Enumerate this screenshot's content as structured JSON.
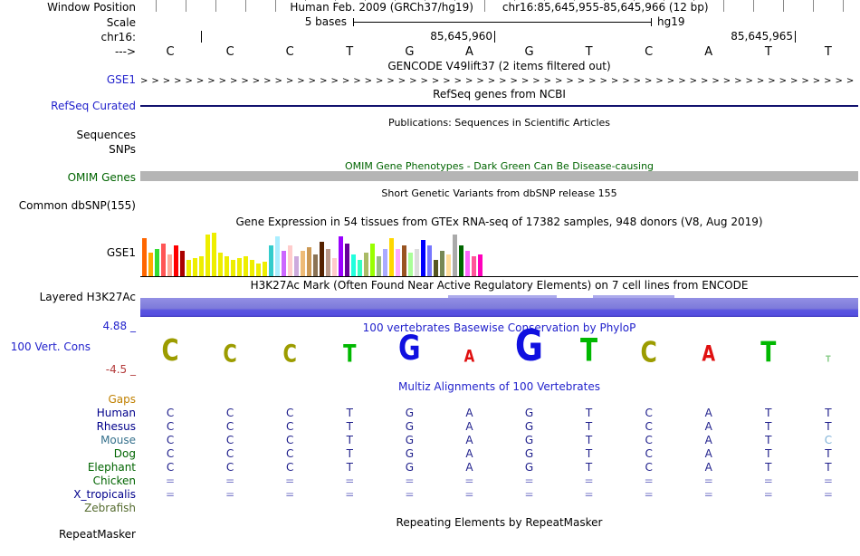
{
  "colors": {
    "track_label_blue": "#2222CC",
    "omim_green": "#006400",
    "negative_score_red": "#B33A3A",
    "align_base_navy": "#20208C",
    "align_gap_blue": "#7878C8",
    "omim_bar_gray": "#B5B5B5",
    "refseq_line_navy": "#12126E",
    "h3k27ac_purple": "#7D7ADA"
  },
  "header": {
    "window_position_label": "Window Position",
    "assembly_text": "Human Feb. 2009 (GRCh37/hg19)",
    "range_text": "chr16:85,645,955-85,645,966 (12 bp)",
    "scale_label": "Scale",
    "scale_value": "5 bases",
    "scale_assembly": "hg19",
    "chrom_label": "chr16:",
    "coords": [
      "85,645,960",
      "85,645,965"
    ],
    "strand_label": "--->"
  },
  "sequence": {
    "bases": [
      "C",
      "C",
      "C",
      "T",
      "G",
      "A",
      "G",
      "T",
      "C",
      "A",
      "T",
      "T"
    ]
  },
  "tracks": {
    "gencode": {
      "title": "GENCODE V49lift37 (2 items filtered out)",
      "item_label": "GSE1",
      "arrows": ">>>>>>>>>>>>>>>>>>>>>>>>>>>>>>>>>>>>>>>>>>>>>>>>>>>>>>>>>>>>>>>>"
    },
    "refseq": {
      "title": "RefSeq genes from NCBI",
      "item_label": "RefSeq Curated"
    },
    "publications": {
      "title": "Publications: Sequences in Scientific Articles",
      "label_sequences": "Sequences",
      "label_snps": "SNPs"
    },
    "omim": {
      "title": "OMIM Gene Phenotypes - Dark Green Can Be Disease-causing",
      "item_label": "OMIM Genes"
    },
    "dbsnp": {
      "title": "Short Genetic Variants from dbSNP release 155",
      "item_label": "Common dbSNP(155)"
    },
    "gtex": {
      "title": "Gene Expression in 54 tissues from GTEx RNA-seq of 17382 samples, 948 donors (V8, Aug 2019)",
      "item_label": "GSE1"
    },
    "h3k27ac": {
      "title": "H3K27Ac Mark (Often Found Near Active Regulatory Elements) on 7 cell lines from ENCODE",
      "item_label": "Layered H3K27Ac"
    },
    "conservation": {
      "title": "100 vertebrates Basewise Conservation by PhyloP",
      "item_label": "100 Vert. Cons",
      "max_label": "4.88 _",
      "min_label": "-4.5 _",
      "logo": [
        {
          "ch": "C",
          "color": "#9C9C00",
          "size": 26
        },
        {
          "ch": "C",
          "color": "#9C9C00",
          "size": 21
        },
        {
          "ch": "C",
          "color": "#9C9C00",
          "size": 21
        },
        {
          "ch": "T",
          "color": "#00B800",
          "size": 21
        },
        {
          "ch": "G",
          "color": "#1010E0",
          "size": 30
        },
        {
          "ch": "A",
          "color": "#E01010",
          "size": 15
        },
        {
          "ch": "G",
          "color": "#1010E0",
          "size": 38
        },
        {
          "ch": "T",
          "color": "#00B800",
          "size": 28
        },
        {
          "ch": "C",
          "color": "#9C9C00",
          "size": 25
        },
        {
          "ch": "A",
          "color": "#E01010",
          "size": 19
        },
        {
          "ch": "T",
          "color": "#00B800",
          "size": 25
        },
        {
          "ch": "T",
          "color": "#88CC88",
          "size": 8
        }
      ]
    },
    "multiz": {
      "title": "Multiz Alignments of 100 Vertebrates",
      "base_color": "#20208C",
      "eq_color": "#7878C8",
      "rows": [
        {
          "name": "Gaps",
          "label_color": "#C08000",
          "bases": [
            "",
            "",
            "",
            "",
            "",
            "",
            "",
            "",
            "",
            "",
            "",
            ""
          ]
        },
        {
          "name": "Human",
          "label_color": "#00008B",
          "bases": [
            "C",
            "C",
            "C",
            "T",
            "G",
            "A",
            "G",
            "T",
            "C",
            "A",
            "T",
            "T"
          ]
        },
        {
          "name": "Rhesus",
          "label_color": "#00008B",
          "bases": [
            "C",
            "C",
            "C",
            "T",
            "G",
            "A",
            "G",
            "T",
            "C",
            "A",
            "T",
            "T"
          ]
        },
        {
          "name": "Mouse",
          "label_color": "#35708C",
          "bases": [
            "C",
            "C",
            "C",
            "T",
            "G",
            "A",
            "G",
            "T",
            "C",
            "A",
            "T",
            "C"
          ],
          "special": {
            "11": "#7FB2D8"
          }
        },
        {
          "name": "Dog",
          "label_color": "#006400",
          "bases": [
            "C",
            "C",
            "C",
            "T",
            "G",
            "A",
            "G",
            "T",
            "C",
            "A",
            "T",
            "T"
          ]
        },
        {
          "name": "Elephant",
          "label_color": "#006400",
          "bases": [
            "C",
            "C",
            "C",
            "T",
            "G",
            "A",
            "G",
            "T",
            "C",
            "A",
            "T",
            "T"
          ]
        },
        {
          "name": "Chicken",
          "label_color": "#006400",
          "bases": [
            "=",
            "=",
            "=",
            "=",
            "=",
            "=",
            "=",
            "=",
            "=",
            "=",
            "=",
            "="
          ]
        },
        {
          "name": "X_tropicalis",
          "label_color": "#00008B",
          "bases": [
            "=",
            "=",
            "=",
            "=",
            "=",
            "=",
            "=",
            "=",
            "=",
            "=",
            "=",
            "="
          ]
        },
        {
          "name": "Zebrafish",
          "label_color": "#556B2F",
          "bases": [
            "",
            "",
            "",
            "",
            "",
            "",
            "",
            "",
            "",
            "",
            "",
            ""
          ]
        }
      ]
    },
    "repeatmasker": {
      "title": "Repeating Elements by RepeatMasker",
      "item_label": "RepeatMasker"
    }
  },
  "chart_data": {
    "type": "bar",
    "title": "Gene Expression in 54 tissues from GTEx RNA-seq of 17382 samples, 948 donors (V8, Aug 2019)",
    "gene": "GSE1",
    "note": "54 GTEx tissue bars; values are bar heights in px (relative expression), colors are GTEx tissue colors left to right",
    "ylim": [
      0,
      50
    ],
    "values": [
      42,
      26,
      30,
      36,
      24,
      34,
      28,
      18,
      20,
      22,
      46,
      48,
      26,
      22,
      18,
      20,
      22,
      18,
      14,
      16,
      34,
      44,
      28,
      34,
      22,
      28,
      32,
      24,
      38,
      30,
      20,
      44,
      36,
      24,
      18,
      26,
      36,
      22,
      30,
      42,
      30,
      34,
      26,
      30,
      40,
      34,
      18,
      28,
      24,
      46,
      34,
      28,
      22,
      24
    ],
    "colors": [
      "#FF6600",
      "#FFAA00",
      "#33DD33",
      "#FF5555",
      "#FFAA99",
      "#FF0000",
      "#AA0000",
      "#EEEE00",
      "#EEEE00",
      "#EEEE00",
      "#EEEE00",
      "#EEEE00",
      "#EEEE00",
      "#EEEE00",
      "#EEEE00",
      "#EEEE00",
      "#EEEE00",
      "#EEEE00",
      "#EEEE00",
      "#EEEE00",
      "#33CCCC",
      "#AAEEFF",
      "#CC66FF",
      "#FFCCCC",
      "#CCAADD",
      "#EEBB77",
      "#CC9955",
      "#8B7355",
      "#552200",
      "#BB9988",
      "#FFCCCC",
      "#9900FF",
      "#660099",
      "#22FFDD",
      "#33FFC2",
      "#AABB66",
      "#99FF00",
      "#99BB88",
      "#AAAAFF",
      "#FFD700",
      "#FFAAFF",
      "#995522",
      "#AAFF99",
      "#DDDDDD",
      "#0000FF",
      "#7777FF",
      "#555522",
      "#778855",
      "#FFDD99",
      "#AAAAAA",
      "#006600",
      "#FF66FF",
      "#FF5599",
      "#FF00BB"
    ]
  }
}
